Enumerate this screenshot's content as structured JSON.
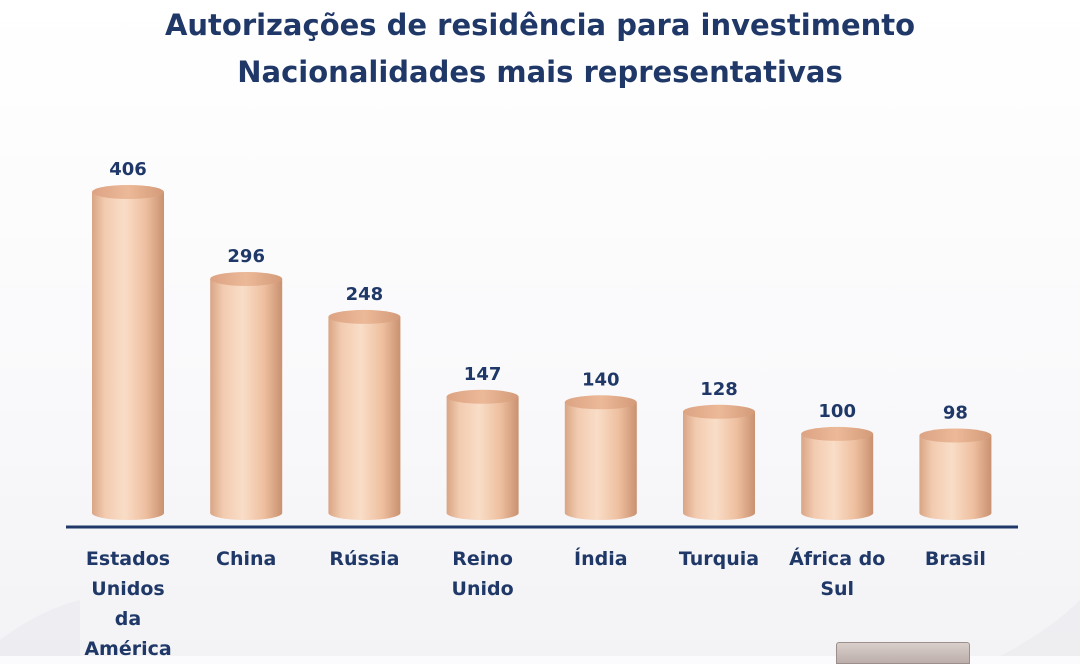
{
  "chart_data": {
    "type": "bar",
    "title": "Autorizações de residência para investimento",
    "subtitle": "Nacionalidades mais representativas",
    "categories": [
      "Estados Unidos da América",
      "China",
      "Rússia",
      "Reino Unido",
      "Índia",
      "Turquia",
      "África do Sul",
      "Brasil"
    ],
    "category_lines": [
      [
        "Estados",
        "Unidos",
        "da",
        "América"
      ],
      [
        "China"
      ],
      [
        "Rússia"
      ],
      [
        "Reino",
        "Unido"
      ],
      [
        "Índia"
      ],
      [
        "Turquia"
      ],
      [
        "África do",
        "Sul"
      ],
      [
        "Brasil"
      ]
    ],
    "values": [
      406,
      296,
      248,
      147,
      140,
      128,
      100,
      98
    ],
    "value_labels": [
      "406",
      "296",
      "248",
      "147",
      "140",
      "128",
      "100",
      "98"
    ],
    "xlabel": "",
    "ylabel": "",
    "ylim": [
      0,
      406
    ],
    "grid": false,
    "legend": "none"
  },
  "colors": {
    "bar": "#efc3a4",
    "bar_shadow": "#c99170",
    "bar_highlight": "#f9ddc7",
    "bar_top": "#e7b191",
    "text": "#1f3868",
    "axis": "#1f3868"
  }
}
